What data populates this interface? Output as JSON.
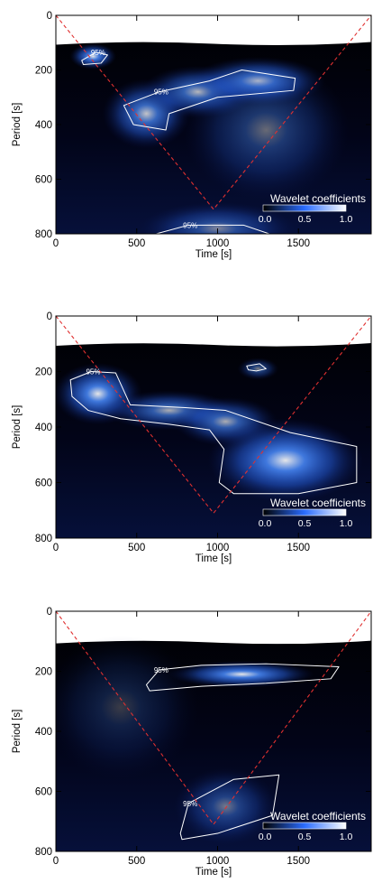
{
  "colors": {
    "background": "#ffffff",
    "map_low": "#000000",
    "map_high": "#ffffff",
    "map_mid": "#2a6cff",
    "contour": "#ffffff",
    "coi": "#e03030"
  },
  "chart_data": [
    {
      "type": "heatmap",
      "xlabel": "Time [s]",
      "ylabel": "Period [s]",
      "xlim": [
        0,
        1950
      ],
      "ylim": [
        800,
        0
      ],
      "xticks": [
        "0",
        "500",
        "1000",
        "1500"
      ],
      "yticks": [
        "0",
        "200",
        "400",
        "600",
        "800"
      ],
      "colorbar": {
        "title": "Wavelet coefficients",
        "ticks": [
          "0.0",
          "0.5",
          "1.0"
        ]
      },
      "cone_of_influence": [
        [
          0,
          0
        ],
        [
          975,
          710
        ],
        [
          1950,
          0
        ]
      ],
      "significance_label": "95%",
      "contours_95": [
        {
          "label": "95%",
          "points": [
            [
              160,
              165
            ],
            [
              250,
              135
            ],
            [
              320,
              145
            ],
            [
              280,
              175
            ],
            [
              170,
              180
            ]
          ]
        },
        {
          "label": "95%",
          "points": [
            [
              420,
              330
            ],
            [
              640,
              280
            ],
            [
              950,
              240
            ],
            [
              1150,
              200
            ],
            [
              1480,
              230
            ],
            [
              1470,
              275
            ],
            [
              1000,
              300
            ],
            [
              700,
              360
            ],
            [
              680,
              420
            ],
            [
              480,
              400
            ]
          ]
        },
        {
          "label": "95%",
          "points": [
            [
              620,
              800
            ],
            [
              820,
              768
            ],
            [
              1160,
              768
            ],
            [
              1320,
              800
            ]
          ]
        }
      ],
      "power_blobs": [
        {
          "t": 230,
          "p": 150,
          "amp": 1.0,
          "wt": 90,
          "wp": 30
        },
        {
          "t": 560,
          "p": 360,
          "amp": 0.85,
          "wt": 170,
          "wp": 80
        },
        {
          "t": 880,
          "p": 280,
          "amp": 0.8,
          "wt": 220,
          "wp": 60
        },
        {
          "t": 1250,
          "p": 240,
          "amp": 0.85,
          "wt": 260,
          "wp": 55
        },
        {
          "t": 1000,
          "p": 780,
          "amp": 0.55,
          "wt": 300,
          "wp": 60
        },
        {
          "t": 1300,
          "p": 420,
          "amp": 0.45,
          "wt": 320,
          "wp": 160
        }
      ]
    },
    {
      "type": "heatmap",
      "xlabel": "Time [s]",
      "ylabel": "Period [s]",
      "xlim": [
        0,
        1950
      ],
      "ylim": [
        800,
        0
      ],
      "xticks": [
        "0",
        "500",
        "1000",
        "1500"
      ],
      "yticks": [
        "0",
        "200",
        "400",
        "600",
        "800"
      ],
      "colorbar": {
        "title": "Wavelet coefficients",
        "ticks": [
          "0.0",
          "0.5",
          "1.0"
        ]
      },
      "cone_of_influence": [
        [
          0,
          0
        ],
        [
          975,
          710
        ],
        [
          1950,
          0
        ]
      ],
      "significance_label": "95%",
      "contours_95": [
        {
          "label": "95%",
          "points": [
            [
              90,
              230
            ],
            [
              220,
              200
            ],
            [
              370,
              205
            ],
            [
              460,
              320
            ],
            [
              800,
              330
            ],
            [
              1050,
              340
            ],
            [
              1450,
              420
            ],
            [
              1860,
              470
            ],
            [
              1860,
              600
            ],
            [
              1500,
              640
            ],
            [
              1100,
              640
            ],
            [
              1010,
              600
            ],
            [
              1040,
              480
            ],
            [
              950,
              410
            ],
            [
              700,
              390
            ],
            [
              400,
              370
            ],
            [
              200,
              340
            ],
            [
              100,
              290
            ]
          ]
        },
        {
          "label": "",
          "points": [
            [
              1180,
              180
            ],
            [
              1260,
              172
            ],
            [
              1300,
              190
            ],
            [
              1240,
              198
            ],
            [
              1190,
              194
            ]
          ]
        }
      ],
      "power_blobs": [
        {
          "t": 260,
          "p": 280,
          "amp": 1.0,
          "wt": 170,
          "wp": 70
        },
        {
          "t": 700,
          "p": 340,
          "amp": 0.75,
          "wt": 250,
          "wp": 45
        },
        {
          "t": 1050,
          "p": 380,
          "amp": 0.75,
          "wt": 200,
          "wp": 55
        },
        {
          "t": 1420,
          "p": 520,
          "amp": 1.0,
          "wt": 300,
          "wp": 95
        },
        {
          "t": 1250,
          "p": 190,
          "amp": 0.55,
          "wt": 80,
          "wp": 25
        }
      ]
    },
    {
      "type": "heatmap",
      "xlabel": "Time [s]",
      "ylabel": "Period [s]",
      "xlim": [
        0,
        1950
      ],
      "ylim": [
        800,
        0
      ],
      "xticks": [
        "0",
        "500",
        "1000",
        "1500"
      ],
      "yticks": [
        "0",
        "200",
        "400",
        "600",
        "800"
      ],
      "colorbar": {
        "title": "Wavelet coefficients",
        "ticks": [
          "0.0",
          "0.5",
          "1.0"
        ]
      },
      "cone_of_influence": [
        [
          0,
          0
        ],
        [
          975,
          710
        ],
        [
          1950,
          0
        ]
      ],
      "significance_label": "95%",
      "contours_95": [
        {
          "label": "95%",
          "points": [
            [
              560,
              245
            ],
            [
              640,
              195
            ],
            [
              900,
              180
            ],
            [
              1300,
              175
            ],
            [
              1750,
              185
            ],
            [
              1700,
              225
            ],
            [
              1300,
              240
            ],
            [
              900,
              250
            ],
            [
              580,
              265
            ]
          ]
        },
        {
          "label": "95%",
          "points": [
            [
              770,
              740
            ],
            [
              820,
              640
            ],
            [
              1100,
              560
            ],
            [
              1380,
              545
            ],
            [
              1340,
              680
            ],
            [
              1000,
              740
            ],
            [
              780,
              760
            ]
          ]
        }
      ],
      "power_blobs": [
        {
          "t": 1150,
          "p": 210,
          "amp": 1.0,
          "wt": 280,
          "wp": 28
        },
        {
          "t": 1050,
          "p": 650,
          "amp": 0.5,
          "wt": 200,
          "wp": 80
        },
        {
          "t": 400,
          "p": 320,
          "amp": 0.25,
          "wt": 300,
          "wp": 150
        }
      ]
    }
  ]
}
